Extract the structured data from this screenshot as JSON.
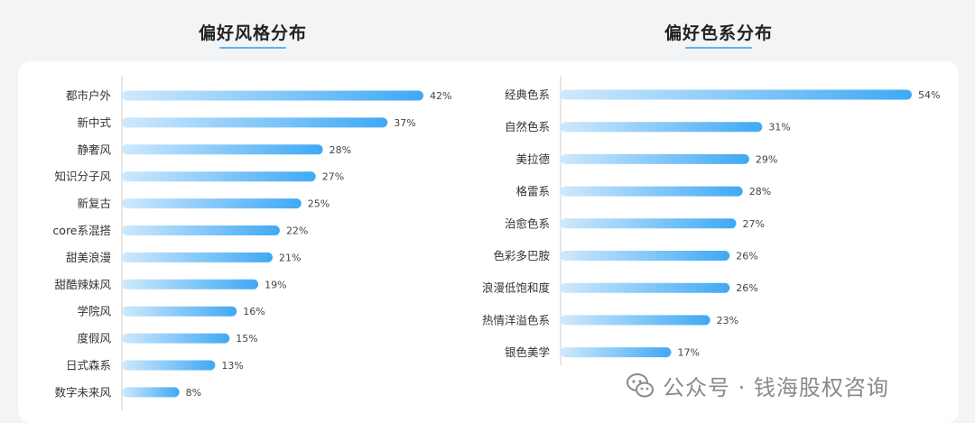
{
  "charts": {
    "left_title": "偏好风格分布",
    "right_title": "偏好色系分布"
  },
  "chart_data": [
    {
      "type": "bar",
      "title": "偏好风格分布",
      "orientation": "horizontal",
      "categories": [
        "都市户外",
        "新中式",
        "静奢风",
        "知识分子风",
        "新复古",
        "core系混搭",
        "甜美浪漫",
        "甜酷辣妹风",
        "学院风",
        "度假风",
        "日式森系",
        "数字未来风"
      ],
      "values": [
        42,
        37,
        28,
        27,
        25,
        22,
        21,
        19,
        16,
        15,
        13,
        8
      ],
      "value_labels": [
        "42%",
        "37%",
        "28%",
        "27%",
        "25%",
        "22%",
        "21%",
        "19%",
        "16%",
        "15%",
        "13%",
        "8%"
      ],
      "unit": "%",
      "gradient": [
        "#cfe9fd",
        "#3fa9f5"
      ]
    },
    {
      "type": "bar",
      "title": "偏好色系分布",
      "orientation": "horizontal",
      "categories": [
        "经典色系",
        "自然色系",
        "美拉德",
        "格雷系",
        "治愈色系",
        "色彩多巴胺",
        "浪漫低饱和度",
        "热情洋溢色系",
        "银色美学"
      ],
      "values": [
        54,
        31,
        29,
        28,
        27,
        26,
        26,
        23,
        17
      ],
      "value_labels": [
        "54%",
        "31%",
        "29%",
        "28%",
        "27%",
        "26%",
        "26%",
        "23%",
        "17%"
      ],
      "unit": "%",
      "gradient": [
        "#cfe9fd",
        "#3fa9f5"
      ]
    }
  ],
  "watermark": {
    "text": "公众号 · 钱海股权咨询",
    "icon": "wechat-icon"
  }
}
